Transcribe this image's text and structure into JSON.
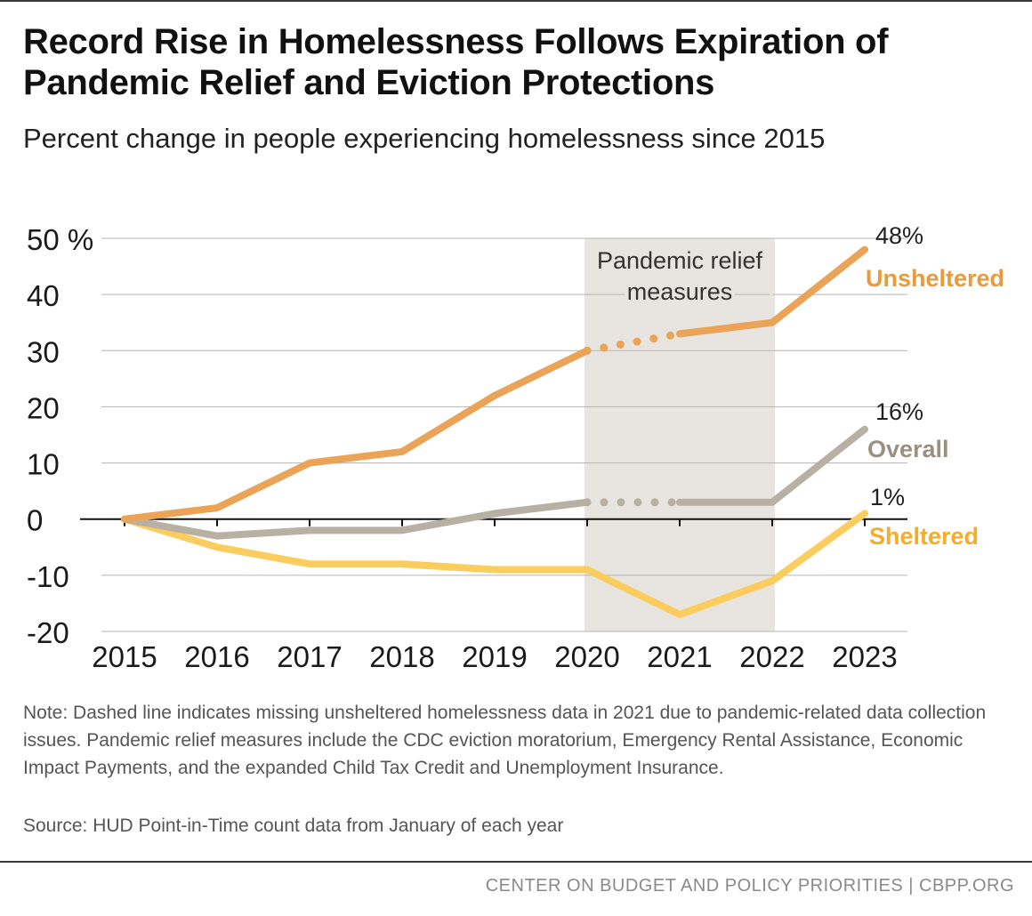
{
  "header": {
    "title": "Record Rise in Homelessness Follows Expiration of Pandemic Relief and Eviction Protections",
    "subtitle": "Percent change in people experiencing homelessness since 2015"
  },
  "chart_data": {
    "type": "line",
    "x": [
      "2015",
      "2016",
      "2017",
      "2018",
      "2019",
      "2020",
      "2021",
      "2022",
      "2023"
    ],
    "ylim": [
      -20,
      50
    ],
    "y_ticks": [
      50,
      40,
      30,
      20,
      10,
      0,
      -10,
      -20
    ],
    "y_tick_labels": [
      "50 %",
      "40",
      "30",
      "20",
      "10",
      "0",
      "-10",
      "-20"
    ],
    "grid": true,
    "shaded_region": {
      "from": "2020",
      "to": "2022",
      "label_line1": "Pandemic relief",
      "label_line2": "measures",
      "color": "#e8e4df"
    },
    "series": [
      {
        "name": "Unsheltered",
        "end_label": "48%",
        "color": "#eaa357",
        "values": [
          0,
          2,
          10,
          12,
          22,
          30,
          33,
          35,
          48
        ],
        "dotted_segment": [
          "2020",
          "2021"
        ]
      },
      {
        "name": "Overall",
        "end_label": "16%",
        "color": "#b9b0a4",
        "values": [
          0,
          -3,
          -2,
          -2,
          1,
          3,
          3,
          3,
          16
        ],
        "dotted_segment": [
          "2020",
          "2021"
        ]
      },
      {
        "name": "Sheltered",
        "end_label": "1%",
        "color": "#fbcd5e",
        "values": [
          0,
          -5,
          -8,
          -8,
          -9,
          -9,
          -17,
          -11,
          1
        ],
        "dotted_segment": null
      }
    ],
    "series_label_colors": {
      "Unsheltered": "#e89a3c",
      "Overall": "#9a8f83",
      "Sheltered": "#f5ac2a"
    }
  },
  "notes": {
    "note": "Note: Dashed line indicates missing unsheltered homelessness data in 2021 due to pandemic-related data collection issues. Pandemic relief measures include the CDC eviction moratorium, Emergency Rental Assistance, Economic Impact Payments, and the expanded Child Tax Credit and Unemployment Insurance.",
    "source": "Source: HUD Point-in-Time count data from January of each year"
  },
  "footer": {
    "text": "CENTER ON BUDGET AND POLICY PRIORITIES | CBPP.ORG"
  }
}
